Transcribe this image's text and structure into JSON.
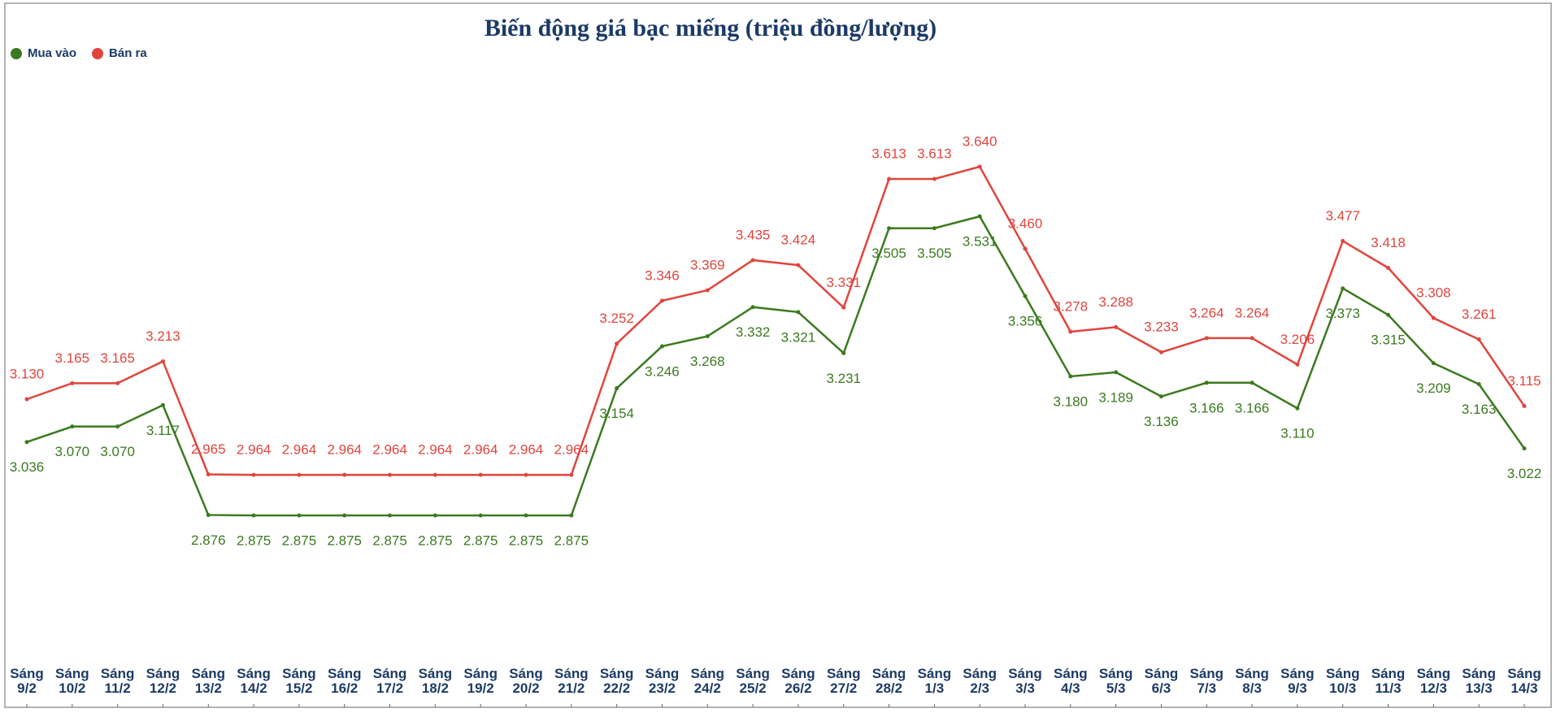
{
  "chart_data": {
    "type": "line",
    "title": "Biến động giá bạc miếng (triệu đồng/lượng)",
    "categories": [
      "Sáng 9/2",
      "Sáng 10/2",
      "Sáng 11/2",
      "Sáng 12/2",
      "Sáng 13/2",
      "Sáng 14/2",
      "Sáng 15/2",
      "Sáng 16/2",
      "Sáng 17/2",
      "Sáng 18/2",
      "Sáng 19/2",
      "Sáng 20/2",
      "Sáng 21/2",
      "Sáng 22/2",
      "Sáng 23/2",
      "Sáng 24/2",
      "Sáng 25/2",
      "Sáng 26/2",
      "Sáng 27/2",
      "Sáng 28/2",
      "Sáng 1/3",
      "Sáng 2/3",
      "Sáng 3/3",
      "Sáng 4/3",
      "Sáng 5/3",
      "Sáng 6/3",
      "Sáng 7/3",
      "Sáng 8/3",
      "Sáng 9/3",
      "Sáng 10/3",
      "Sáng 11/3",
      "Sáng 12/3",
      "Sáng 13/3",
      "Sáng 14/3"
    ],
    "series": [
      {
        "name": "Mua vào",
        "color": "#3b7a1f",
        "values": [
          3.036,
          3.07,
          3.07,
          3.117,
          2.876,
          2.875,
          2.875,
          2.875,
          2.875,
          2.875,
          2.875,
          2.875,
          2.875,
          3.154,
          3.246,
          3.268,
          3.332,
          3.321,
          3.231,
          3.505,
          3.505,
          3.531,
          3.356,
          3.18,
          3.189,
          3.136,
          3.166,
          3.166,
          3.11,
          3.373,
          3.315,
          3.209,
          3.163,
          3.022
        ],
        "value_labels": [
          "3.036",
          "3.070",
          "3.070",
          "3.117",
          "2.876",
          "2.875",
          "2.875",
          "2.875",
          "2.875",
          "2.875",
          "2.875",
          "2.875",
          "2.875",
          "3.154",
          "3.246",
          "3.268",
          "3.332",
          "3.321",
          "3.231",
          "3.505",
          "3.505",
          "3.531",
          "3.356",
          "3.180",
          "3.189",
          "3.136",
          "3.166",
          "3.166",
          "3.110",
          "3.373",
          "3.315",
          "3.209",
          "3.163",
          "3.022"
        ]
      },
      {
        "name": "Bán ra",
        "color": "#e0453d",
        "values": [
          3.13,
          3.165,
          3.165,
          3.213,
          2.965,
          2.964,
          2.964,
          2.964,
          2.964,
          2.964,
          2.964,
          2.964,
          2.964,
          3.252,
          3.346,
          3.369,
          3.435,
          3.424,
          3.331,
          3.613,
          3.613,
          3.64,
          3.46,
          3.278,
          3.288,
          3.233,
          3.264,
          3.264,
          3.206,
          3.477,
          3.418,
          3.308,
          3.261,
          3.115
        ],
        "value_labels": [
          "3.130",
          "3.165",
          "3.165",
          "3.213",
          "2.965",
          "2.964",
          "2.964",
          "2.964",
          "2.964",
          "2.964",
          "2.964",
          "2.964",
          "2.964",
          "3.252",
          "3.346",
          "3.369",
          "3.435",
          "3.424",
          "3.331",
          "3.613",
          "3.613",
          "3.640",
          "3.460",
          "3.278",
          "3.288",
          "3.233",
          "3.264",
          "3.264",
          "3.206",
          "3.477",
          "3.418",
          "3.308",
          "3.261",
          "3.115"
        ]
      }
    ],
    "legend": "top-left"
  }
}
